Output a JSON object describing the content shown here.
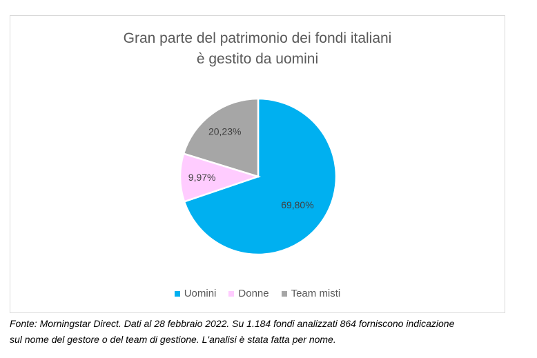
{
  "chart_data": {
    "type": "pie",
    "title_line1": "Gran parte del patrimonio dei fondi italiani",
    "title_line2": "è gestito da uomini",
    "categories": [
      "Uomini",
      "Donne",
      "Team misti"
    ],
    "values": [
      69.8,
      9.97,
      20.23
    ],
    "labels": [
      "69,80%",
      "9,97%",
      "20,23%"
    ],
    "colors": [
      "#00b0f0",
      "#ffccff",
      "#a6a6a6"
    ],
    "legend_position": "bottom"
  },
  "footnote": {
    "line1": "Fonte: Morningstar Direct. Dati al 28 febbraio 2022. Su 1.184 fondi analizzati 864 forniscono indicazione",
    "line2": "sul nome del gestore o del team di gestione. L'analisi è stata fatta per nome."
  }
}
